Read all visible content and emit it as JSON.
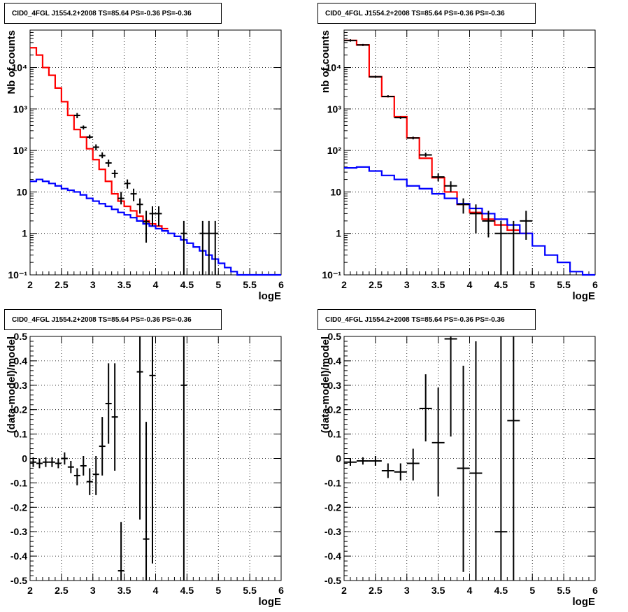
{
  "chart_data": [
    {
      "type": "histogram-step",
      "title": "CID0_4FGL J1554.2+2008 TS=85.64 PS=-0.36 PS=-0.36",
      "xlabel": "logE",
      "ylabel": "Nb of counts",
      "xlim": [
        2,
        6
      ],
      "ylim": [
        0.1,
        80000
      ],
      "yscale": "log",
      "grid": true,
      "bin_width": 0.1,
      "series": [
        {
          "color": "#ff0000",
          "kind": "step",
          "x": [
            2.0,
            2.1,
            2.2,
            2.3,
            2.4,
            2.5,
            2.6,
            2.7,
            2.8,
            2.9,
            3.0,
            3.1,
            3.2,
            3.3,
            3.4,
            3.5,
            3.6,
            3.7,
            3.8,
            3.9,
            4.0,
            4.1
          ],
          "values": [
            30000,
            20000,
            10000,
            6500,
            3200,
            1500,
            700,
            320,
            210,
            110,
            60,
            35,
            18,
            9,
            6,
            4.5,
            3.5,
            2.6,
            2.0,
            1.7,
            1.5,
            1.3
          ]
        },
        {
          "color": "#0000ff",
          "kind": "step",
          "x": [
            2.0,
            2.1,
            2.2,
            2.3,
            2.4,
            2.5,
            2.6,
            2.7,
            2.8,
            2.9,
            3.0,
            3.1,
            3.2,
            3.3,
            3.4,
            3.5,
            3.6,
            3.7,
            3.8,
            3.9,
            4.0,
            4.1,
            4.2,
            4.3,
            4.4,
            4.5,
            4.6,
            4.7,
            4.8,
            4.9,
            5.0,
            5.1,
            5.2,
            5.3,
            5.4,
            5.5,
            5.6,
            5.7,
            5.8,
            5.9
          ],
          "values": [
            18,
            20,
            18,
            16,
            14,
            12,
            11,
            10,
            8.5,
            7,
            6,
            5.2,
            4.5,
            3.8,
            3.2,
            2.8,
            2.4,
            2.0,
            1.7,
            1.5,
            1.3,
            1.15,
            1.0,
            0.85,
            0.7,
            0.58,
            0.47,
            0.38,
            0.3,
            0.24,
            0.19,
            0.15,
            0.12,
            0.1,
            0.1,
            0.1,
            0.1,
            0.1,
            0.1,
            0.1
          ]
        },
        {
          "color": "#000000",
          "kind": "points",
          "points": [
            {
              "x": 2.75,
              "y": 700,
              "ylo": 600,
              "yhi": 800
            },
            {
              "x": 2.85,
              "y": 360,
              "ylo": 320,
              "yhi": 400
            },
            {
              "x": 2.95,
              "y": 210,
              "ylo": 190,
              "yhi": 240
            },
            {
              "x": 3.05,
              "y": 120,
              "ylo": 100,
              "yhi": 140
            },
            {
              "x": 3.15,
              "y": 75,
              "ylo": 65,
              "yhi": 90
            },
            {
              "x": 3.25,
              "y": 50,
              "ylo": 40,
              "yhi": 60
            },
            {
              "x": 3.35,
              "y": 28,
              "ylo": 22,
              "yhi": 34
            },
            {
              "x": 3.45,
              "y": 7,
              "ylo": 5,
              "yhi": 10
            },
            {
              "x": 3.55,
              "y": 16,
              "ylo": 12,
              "yhi": 20
            },
            {
              "x": 3.65,
              "y": 9,
              "ylo": 6,
              "yhi": 12
            },
            {
              "x": 3.75,
              "y": 5,
              "ylo": 3,
              "yhi": 7
            },
            {
              "x": 3.85,
              "y": 1.9,
              "ylo": 0.6,
              "yhi": 3.5
            },
            {
              "x": 3.95,
              "y": 3,
              "ylo": 1.5,
              "yhi": 4.5
            },
            {
              "x": 4.05,
              "y": 3,
              "ylo": 1.5,
              "yhi": 4.5
            },
            {
              "x": 4.45,
              "y": 1,
              "ylo": 0.1,
              "yhi": 2
            },
            {
              "x": 4.75,
              "y": 1,
              "ylo": 0.1,
              "yhi": 2
            },
            {
              "x": 4.85,
              "y": 1,
              "ylo": 0.1,
              "yhi": 2
            },
            {
              "x": 4.95,
              "y": 1,
              "ylo": 0.1,
              "yhi": 2
            }
          ]
        }
      ]
    },
    {
      "type": "histogram-step",
      "title": "CID0_4FGL J1554.2+2008 TS=85.64 PS=-0.36 PS=-0.36",
      "xlabel": "logE",
      "ylabel": "nb of counts",
      "xlim": [
        2,
        6
      ],
      "ylim": [
        0.1,
        80000
      ],
      "yscale": "log",
      "grid": true,
      "bin_width": 0.2,
      "series": [
        {
          "color": "#ff0000",
          "kind": "step",
          "x": [
            2.0,
            2.2,
            2.4,
            2.6,
            2.8,
            3.0,
            3.2,
            3.4,
            3.6,
            3.8,
            4.0,
            4.2,
            4.4,
            4.6,
            4.8
          ],
          "values": [
            45000,
            35000,
            6000,
            2000,
            650,
            200,
            65,
            22,
            10,
            5,
            3.2,
            2.2,
            1.6,
            1.2,
            1.0
          ]
        },
        {
          "color": "#0000ff",
          "kind": "step",
          "x": [
            2.0,
            2.2,
            2.4,
            2.6,
            2.8,
            3.0,
            3.2,
            3.4,
            3.6,
            3.8,
            4.0,
            4.2,
            4.4,
            4.6,
            4.8,
            5.0,
            5.2,
            5.4,
            5.6,
            5.8
          ],
          "values": [
            38,
            40,
            32,
            25,
            20,
            14,
            12,
            9,
            7,
            5.2,
            4,
            3,
            2.2,
            1.6,
            1,
            0.5,
            0.3,
            0.2,
            0.12,
            0.1
          ]
        },
        {
          "color": "#000000",
          "kind": "points",
          "points": [
            {
              "x": 2.1,
              "y": 45000,
              "ylo": 42000,
              "yhi": 48000
            },
            {
              "x": 2.3,
              "y": 35000,
              "ylo": 33000,
              "yhi": 37000
            },
            {
              "x": 2.5,
              "y": 6000,
              "ylo": 5700,
              "yhi": 6300
            },
            {
              "x": 2.7,
              "y": 2000,
              "ylo": 1900,
              "yhi": 2150
            },
            {
              "x": 2.9,
              "y": 620,
              "ylo": 580,
              "yhi": 660
            },
            {
              "x": 3.1,
              "y": 200,
              "ylo": 185,
              "yhi": 215
            },
            {
              "x": 3.3,
              "y": 78,
              "ylo": 70,
              "yhi": 88
            },
            {
              "x": 3.5,
              "y": 23,
              "ylo": 18,
              "yhi": 28
            },
            {
              "x": 3.7,
              "y": 14,
              "ylo": 10,
              "yhi": 18
            },
            {
              "x": 3.9,
              "y": 5,
              "ylo": 3,
              "yhi": 7
            },
            {
              "x": 4.1,
              "y": 3,
              "ylo": 1,
              "yhi": 5
            },
            {
              "x": 4.3,
              "y": 2,
              "ylo": 0.8,
              "yhi": 3.5
            },
            {
              "x": 4.5,
              "y": 1,
              "ylo": 0.1,
              "yhi": 2
            },
            {
              "x": 4.7,
              "y": 1,
              "ylo": 0.1,
              "yhi": 2
            },
            {
              "x": 4.9,
              "y": 2,
              "ylo": 0.7,
              "yhi": 3.5
            }
          ]
        }
      ]
    },
    {
      "type": "scatter-errorbars",
      "title": "CID0_4FGL J1554.2+2008 TS=85.64 PS=-0.36 PS=-0.36",
      "xlabel": "logE",
      "ylabel": "(data-model)/model",
      "xlim": [
        2,
        6
      ],
      "ylim": [
        -0.5,
        0.5
      ],
      "grid": true,
      "bin_width": 0.1,
      "points": [
        {
          "x": 2.05,
          "y": -0.015,
          "ylo": -0.035,
          "yhi": 0.005
        },
        {
          "x": 2.15,
          "y": -0.02,
          "ylo": -0.04,
          "yhi": 0.0
        },
        {
          "x": 2.25,
          "y": -0.015,
          "ylo": -0.035,
          "yhi": 0.005
        },
        {
          "x": 2.35,
          "y": -0.015,
          "ylo": -0.035,
          "yhi": 0.005
        },
        {
          "x": 2.45,
          "y": -0.02,
          "ylo": -0.04,
          "yhi": 0.0
        },
        {
          "x": 2.55,
          "y": 0.0,
          "ylo": -0.025,
          "yhi": 0.025
        },
        {
          "x": 2.65,
          "y": -0.035,
          "ylo": -0.06,
          "yhi": -0.01
        },
        {
          "x": 2.75,
          "y": -0.07,
          "ylo": -0.11,
          "yhi": -0.04
        },
        {
          "x": 2.85,
          "y": -0.03,
          "ylo": -0.07,
          "yhi": 0.01
        },
        {
          "x": 2.95,
          "y": -0.095,
          "ylo": -0.15,
          "yhi": -0.04
        },
        {
          "x": 3.05,
          "y": -0.065,
          "ylo": -0.15,
          "yhi": 0.01
        },
        {
          "x": 3.15,
          "y": 0.05,
          "ylo": -0.07,
          "yhi": 0.17
        },
        {
          "x": 3.25,
          "y": 0.225,
          "ylo": 0.06,
          "yhi": 0.39
        },
        {
          "x": 3.35,
          "y": 0.17,
          "ylo": -0.05,
          "yhi": 0.39
        },
        {
          "x": 3.45,
          "y": -0.46,
          "ylo": -0.5,
          "yhi": -0.26
        },
        {
          "x": 3.75,
          "y": 0.355,
          "ylo": -0.25,
          "yhi": 0.5
        },
        {
          "x": 3.85,
          "y": -0.33,
          "ylo": -0.5,
          "yhi": 0.15
        },
        {
          "x": 3.95,
          "y": 0.34,
          "ylo": -0.43,
          "yhi": 0.5
        },
        {
          "x": 4.45,
          "y": 0.3,
          "ylo": -0.5,
          "yhi": 0.5
        }
      ]
    },
    {
      "type": "scatter-errorbars",
      "title": "CID0_4FGL J1554.2+2008 TS=85.64 PS=-0.36 PS=-0.36",
      "xlabel": "logE",
      "ylabel": "(data-model)/model",
      "xlim": [
        2,
        6
      ],
      "ylim": [
        -0.5,
        0.5
      ],
      "grid": true,
      "bin_width": 0.2,
      "points": [
        {
          "x": 2.1,
          "y": -0.015,
          "ylo": -0.03,
          "yhi": 0.0
        },
        {
          "x": 2.3,
          "y": -0.01,
          "ylo": -0.025,
          "yhi": 0.005
        },
        {
          "x": 2.5,
          "y": -0.01,
          "ylo": -0.03,
          "yhi": 0.01
        },
        {
          "x": 2.7,
          "y": -0.05,
          "ylo": -0.08,
          "yhi": -0.02
        },
        {
          "x": 2.9,
          "y": -0.055,
          "ylo": -0.09,
          "yhi": -0.02
        },
        {
          "x": 3.1,
          "y": -0.02,
          "ylo": -0.09,
          "yhi": 0.04
        },
        {
          "x": 3.3,
          "y": 0.205,
          "ylo": 0.07,
          "yhi": 0.345
        },
        {
          "x": 3.5,
          "y": 0.065,
          "ylo": -0.155,
          "yhi": 0.29
        },
        {
          "x": 3.7,
          "y": 0.49,
          "ylo": 0.09,
          "yhi": 0.5
        },
        {
          "x": 3.9,
          "y": -0.04,
          "ylo": -0.465,
          "yhi": 0.38
        },
        {
          "x": 4.1,
          "y": -0.06,
          "ylo": -0.5,
          "yhi": 0.48
        },
        {
          "x": 4.5,
          "y": -0.3,
          "ylo": -0.5,
          "yhi": 0.5
        },
        {
          "x": 4.7,
          "y": 0.155,
          "ylo": -0.5,
          "yhi": 0.5
        }
      ]
    }
  ]
}
